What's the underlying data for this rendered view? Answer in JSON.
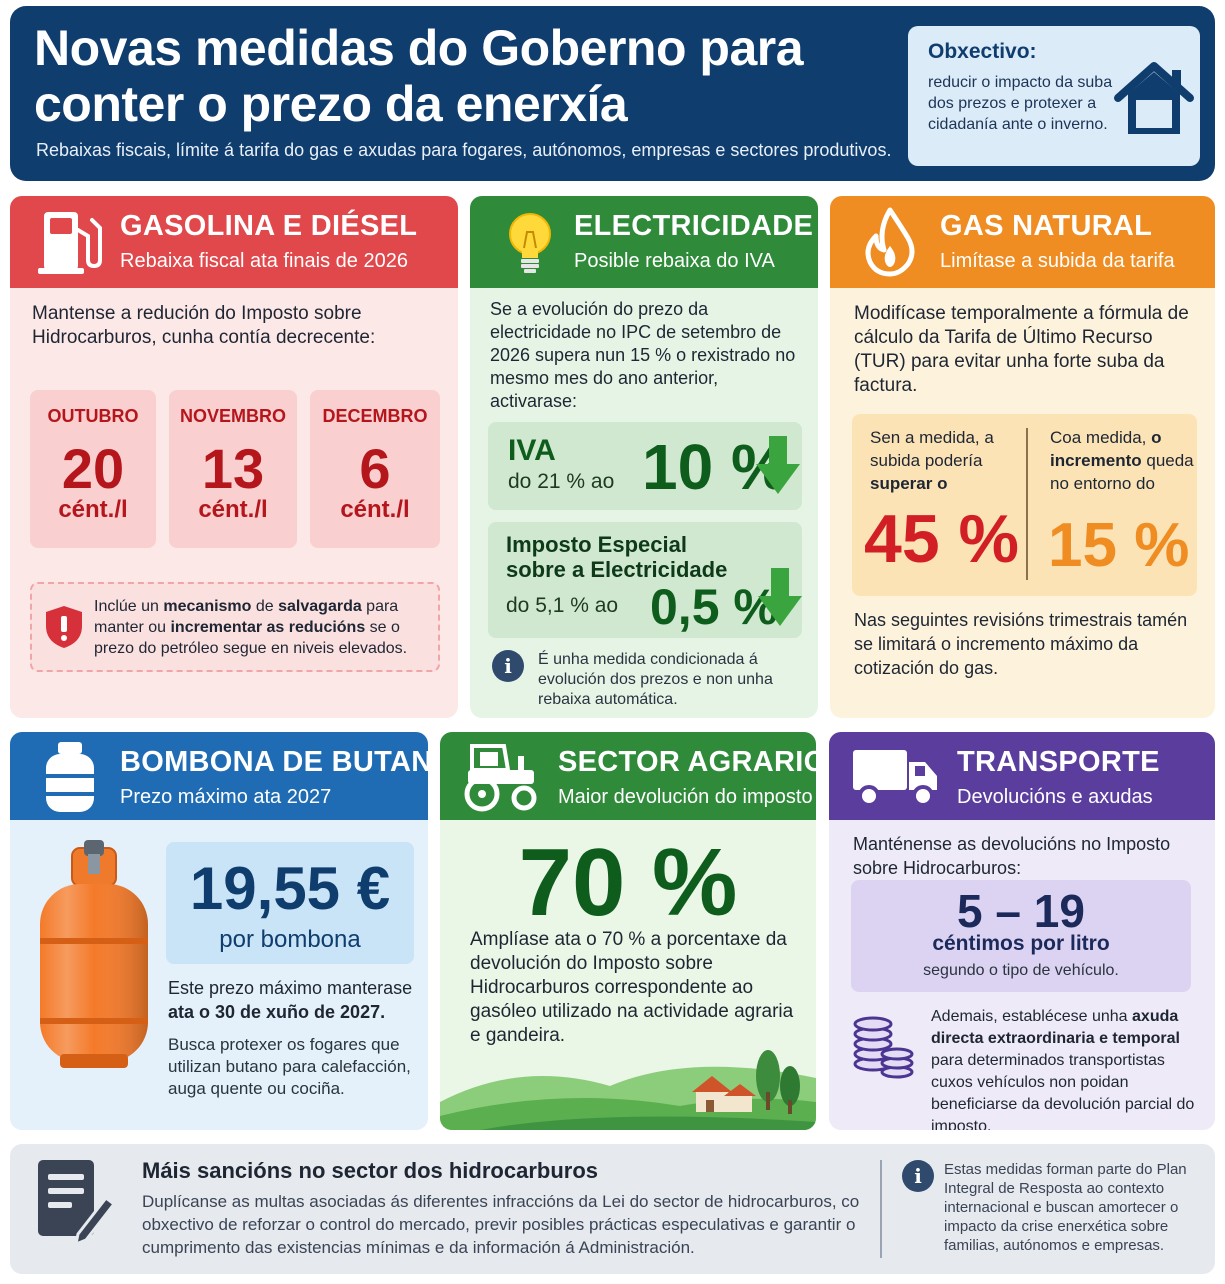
{
  "header": {
    "title": "Novas medidas do Goberno para conter o prezo da enerxía",
    "subtitle": "Rebaixas fiscais, límite á tarifa do gas e axudas para fogares, autónomos, empresas e sectores produtivos.",
    "goal_title": "Obxectivo:",
    "goal_text": "reducir o impacto da suba dos prezos e protexer a cidadanía ante o inverno."
  },
  "gasoline": {
    "title": "GASOLINA E DIÉSEL",
    "subtitle": "Rebaixa fiscal ata finais de 2026",
    "intro": "Mantense a redución do Imposto sobre Hidrocarburos, cunha contía decrecente:",
    "months": [
      {
        "name": "OUTUBRO",
        "value": "20",
        "unit": "cént./l"
      },
      {
        "name": "NOVEMBRO",
        "value": "13",
        "unit": "cént./l"
      },
      {
        "name": "DECEMBRO",
        "value": "6",
        "unit": "cént./l"
      }
    ],
    "safeguard": {
      "p1": "Inclúe un ",
      "b1": "mecanismo",
      "p2": " de ",
      "b2": "salvagarda",
      "p3": " para manter ou ",
      "b3": "incrementar as reducións",
      "p4": " se o prezo do petróleo segue en niveis elevados."
    }
  },
  "electricity": {
    "title": "ELECTRICIDADE",
    "subtitle": "Posible rebaixa do IVA",
    "intro": "Se a evolución do prezo da electricidade no IPC de setembro de 2026 supera nun 15 % o rexistrado no mesmo mes do ano anterior, activarase:",
    "iva_label": "IVA",
    "iva_from": "do 21 % ao",
    "iva_value": "10 %",
    "tax_label_1": "Imposto Especial",
    "tax_label_2": "sobre a Electricidade",
    "tax_from": "do 5,1 % ao",
    "tax_value": "0,5 %",
    "note": "É unha medida condicionada á evolución dos prezos e non unha rebaixa automática."
  },
  "natural_gas": {
    "title": "GAS NATURAL",
    "subtitle": "Limítase a subida da tarifa",
    "intro": "Modifícase temporalmente a fórmula de cálculo da Tarifa de Último Recurso (TUR) para evitar unha forte suba da factura.",
    "without_p1": "Sen a medida, a subida podería ",
    "without_b1": "superar o",
    "without_value": "45 %",
    "with_p1": "Coa medida, ",
    "with_b1": "o incremento",
    "with_p2": " queda no entorno do",
    "with_value": "15 %",
    "outro": "Nas seguintes revisións trimestrais tamén se limitará o incremento máximo da cotización do gas."
  },
  "butane": {
    "title": "BOMBONA DE BUTANO",
    "subtitle": "Prezo máximo ata 2027",
    "price": "19,55 €",
    "price_unit": "por bombona",
    "text_p1": "Este prezo máximo manterase ",
    "text_b1": "ata o 30 de xuño de 2027.",
    "text2": "Busca protexer os fogares que utilizan butano para calefacción, auga quente ou cociña."
  },
  "agrarian": {
    "title": "SECTOR AGRARIO",
    "subtitle": "Maior devolución do imposto",
    "value": "70 %",
    "text": "Amplíase ata o 70 % a porcentaxe da devolución do Imposto sobre Hidrocarburos correspondente ao gasóleo utilizado na actividade agraria e gandeira."
  },
  "transport": {
    "title": "TRANSPORTE",
    "subtitle": "Devolucións e axudas",
    "intro": "Manténense as devolucións no Imposto sobre Hidrocarburos:",
    "range": "5 – 19",
    "range_unit": "céntimos por litro",
    "range_note": "segundo o tipo de vehículo.",
    "aid_p1": "Ademais, establécese unha ",
    "aid_b1": "axuda directa extraordinaria e temporal",
    "aid_p2": " para determinados transportistas cuxos vehículos non poidan beneficiarse da devolución parcial do imposto."
  },
  "footer": {
    "title": "Máis sancións no sector dos hidrocarburos",
    "text": "Duplícanse as multas asociadas ás diferentes infraccións da Lei do sector de hidrocarburos, co obxectivo de reforzar o control do mercado, previr posibles prácticas especulativas e garantir o cumprimento das existencias mínimas e da información á Administración.",
    "note": "Estas medidas forman parte do Plan Integral de Resposta ao contexto internacional e buscan amortecer o impacto da crise enerxética sobre familias, autónomos e empresas."
  },
  "colors": {
    "header_bg": "#0f3d6e",
    "gasoline": "#e0484b",
    "electricity": "#2f8a3a",
    "natural_gas": "#ef8c22",
    "butane": "#1f6cb5",
    "transport": "#5b3d9e"
  },
  "icons": [
    "house-icon",
    "fuel-pump-icon",
    "shield-icon",
    "lightbulb-icon",
    "arrow-down-icon",
    "info-icon",
    "flame-icon",
    "gas-cylinder-icon",
    "tractor-icon",
    "truck-icon",
    "coins-icon",
    "document-pen-icon",
    "landscape-illustration"
  ]
}
